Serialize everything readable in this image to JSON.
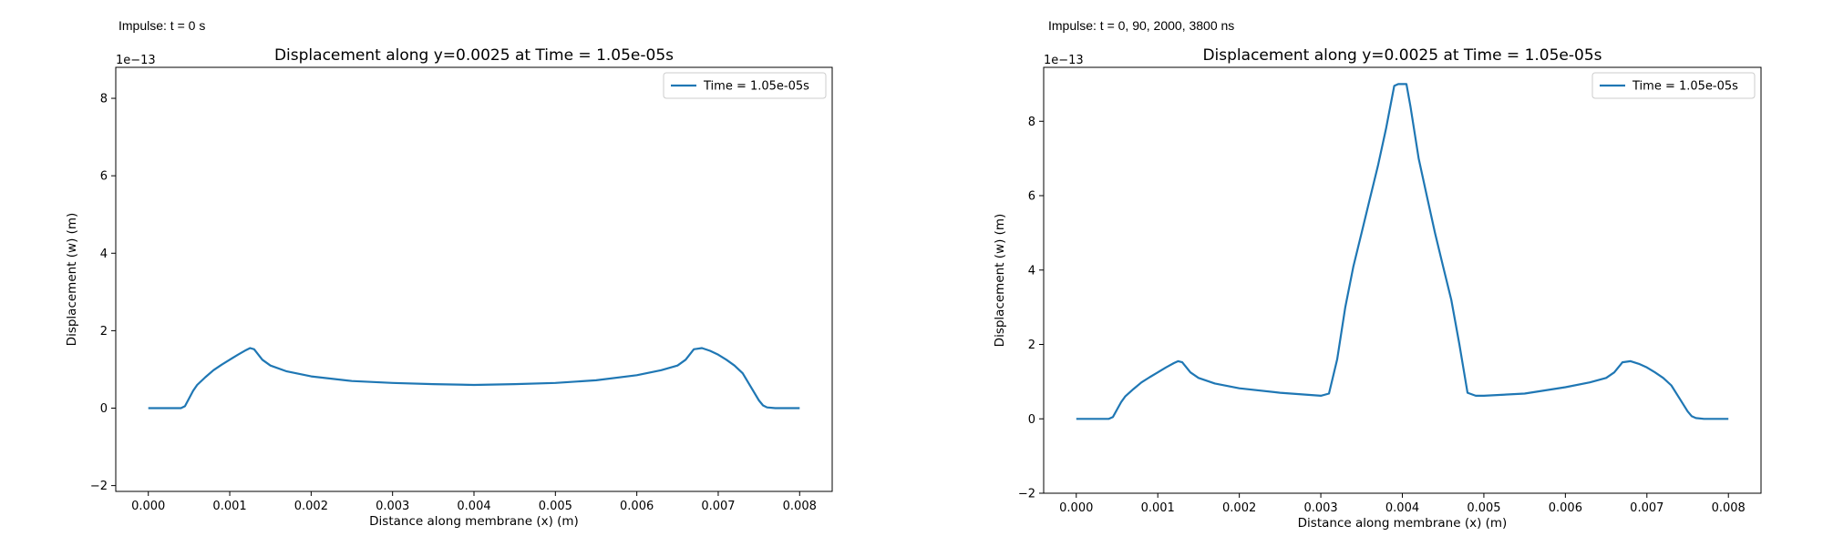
{
  "captions": [
    "Impulse: t = 0 s",
    "Impulse: t = 0, 90, 2000, 3800 ns"
  ],
  "colors": {
    "series": "#1f77b4",
    "axis": "#000000"
  },
  "chart_data": [
    {
      "type": "line",
      "title": "Displacement along y=0.0025 at Time = 1.05e-05s",
      "xlabel": "Distance along membrane (x) (m)",
      "ylabel": "Displacement (w) (m)",
      "y_scale_label": "1e−13",
      "xlim": [
        -0.0004,
        0.0084
      ],
      "ylim": [
        -2.15,
        8.8
      ],
      "xticks": [
        0,
        0.001,
        0.002,
        0.003,
        0.004,
        0.005,
        0.006,
        0.007,
        0.008
      ],
      "xtick_labels": [
        "0.000",
        "0.001",
        "0.002",
        "0.003",
        "0.004",
        "0.005",
        "0.006",
        "0.007",
        "0.008"
      ],
      "yticks": [
        -2,
        0,
        2,
        4,
        6,
        8
      ],
      "ytick_labels": [
        "−2",
        "0",
        "2",
        "4",
        "6",
        "8"
      ],
      "legend_position": "top-right",
      "series": [
        {
          "name": "Time = 1.05e-05s",
          "x": [
            0,
            0.0002,
            0.00035,
            0.0004,
            0.00045,
            0.0005,
            0.00055,
            0.0006,
            0.0007,
            0.0008,
            0.0009,
            0.001,
            0.0011,
            0.0012,
            0.00125,
            0.0013,
            0.0014,
            0.0015,
            0.0017,
            0.002,
            0.0025,
            0.003,
            0.0035,
            0.004,
            0.0045,
            0.005,
            0.0055,
            0.006,
            0.0063,
            0.0065,
            0.0066,
            0.0067,
            0.0068,
            0.0069,
            0.007,
            0.0071,
            0.0072,
            0.0073,
            0.0074,
            0.0075,
            0.00755,
            0.0076,
            0.0077,
            0.008
          ],
          "y": [
            0,
            0,
            0,
            0,
            0.05,
            0.25,
            0.45,
            0.6,
            0.8,
            0.98,
            1.12,
            1.25,
            1.38,
            1.5,
            1.55,
            1.52,
            1.25,
            1.1,
            0.95,
            0.82,
            0.7,
            0.65,
            0.62,
            0.6,
            0.62,
            0.65,
            0.72,
            0.85,
            0.98,
            1.1,
            1.25,
            1.52,
            1.55,
            1.48,
            1.38,
            1.25,
            1.1,
            0.9,
            0.55,
            0.2,
            0.07,
            0.02,
            0,
            0
          ]
        }
      ]
    },
    {
      "type": "line",
      "title": "Displacement along y=0.0025 at Time = 1.05e-05s",
      "xlabel": "Distance along membrane (x) (m)",
      "ylabel": "Displacement (w) (m)",
      "y_scale_label": "1e−13",
      "xlim": [
        -0.0004,
        0.0084
      ],
      "ylim": [
        -2.0,
        9.45
      ],
      "xticks": [
        0,
        0.001,
        0.002,
        0.003,
        0.004,
        0.005,
        0.006,
        0.007,
        0.008
      ],
      "xtick_labels": [
        "0.000",
        "0.001",
        "0.002",
        "0.003",
        "0.004",
        "0.005",
        "0.006",
        "0.007",
        "0.008"
      ],
      "yticks": [
        -2,
        0,
        2,
        4,
        6,
        8
      ],
      "ytick_labels": [
        "−2",
        "0",
        "2",
        "4",
        "6",
        "8"
      ],
      "legend_position": "top-right",
      "series": [
        {
          "name": "Time = 1.05e-05s",
          "x": [
            0,
            0.0002,
            0.00035,
            0.0004,
            0.00045,
            0.0005,
            0.00055,
            0.0006,
            0.0007,
            0.0008,
            0.0009,
            0.001,
            0.0011,
            0.0012,
            0.00125,
            0.0013,
            0.0014,
            0.0015,
            0.0017,
            0.002,
            0.0025,
            0.003,
            0.0031,
            0.0032,
            0.0033,
            0.0034,
            0.0035,
            0.0036,
            0.0037,
            0.0038,
            0.0039,
            0.00395,
            0.00405,
            0.0041,
            0.0042,
            0.0043,
            0.0044,
            0.0045,
            0.0046,
            0.0047,
            0.0048,
            0.0049,
            0.005,
            0.0055,
            0.006,
            0.0063,
            0.0065,
            0.0066,
            0.0067,
            0.0068,
            0.0069,
            0.007,
            0.0071,
            0.0072,
            0.0073,
            0.0074,
            0.0075,
            0.00755,
            0.0076,
            0.0077,
            0.008
          ],
          "y": [
            0,
            0,
            0,
            0,
            0.05,
            0.25,
            0.45,
            0.6,
            0.8,
            0.98,
            1.12,
            1.25,
            1.38,
            1.5,
            1.55,
            1.52,
            1.25,
            1.1,
            0.95,
            0.82,
            0.7,
            0.62,
            0.68,
            1.6,
            3.0,
            4.1,
            5.0,
            5.9,
            6.8,
            7.8,
            8.95,
            9.0,
            9.0,
            8.4,
            7.0,
            6.0,
            5.0,
            4.1,
            3.2,
            2.0,
            0.7,
            0.62,
            0.62,
            0.68,
            0.85,
            0.98,
            1.1,
            1.25,
            1.52,
            1.55,
            1.48,
            1.38,
            1.25,
            1.1,
            0.9,
            0.55,
            0.2,
            0.07,
            0.02,
            0,
            0
          ]
        }
      ]
    }
  ]
}
